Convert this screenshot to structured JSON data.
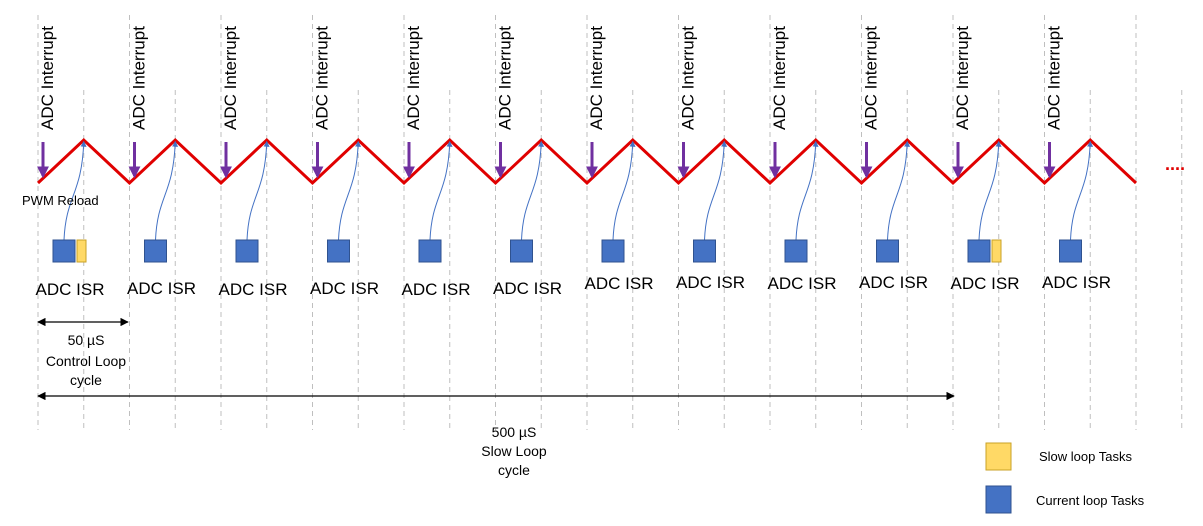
{
  "diagram": {
    "adc_interrupt_label": "ADC Interrupt",
    "pwm_reload_label": "PWM Reload",
    "adc_isr_label": "ADC ISR",
    "continuation": "....",
    "control_loop": {
      "period": "50 µS",
      "line2": "Control Loop",
      "line3": "cycle"
    },
    "slow_loop": {
      "period": "500 µS",
      "line2": "Slow Loop",
      "line3": "cycle"
    },
    "cycle_count": 12,
    "slow_task_cycles": [
      0,
      10
    ]
  },
  "legend": {
    "items": [
      {
        "label": "Slow loop Tasks",
        "color": "#FFD966"
      },
      {
        "label": "Current loop Tasks",
        "color": "#4472C4"
      }
    ]
  },
  "colors": {
    "triangle": "#E00000",
    "interrupt_arrow": "#7030A0",
    "isr_connector": "#4472C4",
    "slow_task": "#FFD966",
    "current_task": "#4472C4",
    "gridline": "#BFBFBF"
  }
}
